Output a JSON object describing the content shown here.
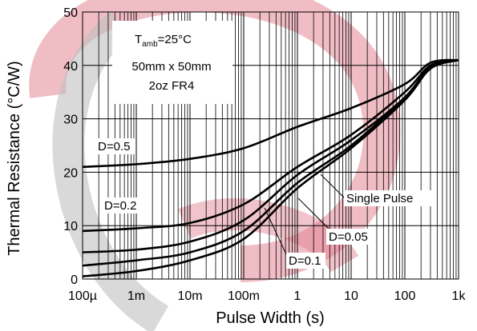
{
  "chart_data": {
    "type": "line",
    "x_label": "Pulse Width (s)",
    "y_label": "Thermal Resistance (°C/W)",
    "log_x": true,
    "grid": true,
    "x": [
      0.0001,
      0.001,
      0.01,
      0.1,
      1,
      10,
      100,
      300,
      1000
    ],
    "series": [
      {
        "name": "D=0.5",
        "color": "#000000",
        "values": [
          21,
          21.5,
          22.5,
          24.5,
          28.5,
          32,
          36.5,
          40.5,
          41
        ]
      },
      {
        "name": "D=0.2",
        "color": "#000000",
        "values": [
          9,
          9.5,
          10.5,
          14,
          21,
          27,
          35,
          40,
          41
        ]
      },
      {
        "name": "D=0.1",
        "color": "#000000",
        "values": [
          5,
          5.5,
          7,
          11,
          19.5,
          26,
          34,
          39.8,
          41
        ]
      },
      {
        "name": "D=0.05",
        "color": "#000000",
        "values": [
          2.5,
          3.5,
          5,
          9,
          18,
          25,
          34,
          39.6,
          41
        ]
      },
      {
        "name": "Single Pulse",
        "color": "#000000",
        "values": [
          0.5,
          1.5,
          3.5,
          7.5,
          17,
          24.5,
          33.5,
          39.4,
          41
        ]
      }
    ],
    "xlim": [
      0.0001,
      1000
    ],
    "xticks": [
      {
        "value": 0.0001,
        "label": "100µ"
      },
      {
        "value": 0.001,
        "label": "1m"
      },
      {
        "value": 0.01,
        "label": "10m"
      },
      {
        "value": 0.1,
        "label": "100m"
      },
      1,
      10,
      100,
      {
        "value": 1000,
        "label": "1k"
      }
    ],
    "ylim": [
      0,
      50
    ],
    "yticks": [
      0,
      10,
      20,
      30,
      40,
      50
    ],
    "annotation": {
      "t": "T",
      "sub": "amb",
      "rest": "=25°C",
      "line2": "50mm x 50mm",
      "line3": "2oz FR4"
    }
  }
}
